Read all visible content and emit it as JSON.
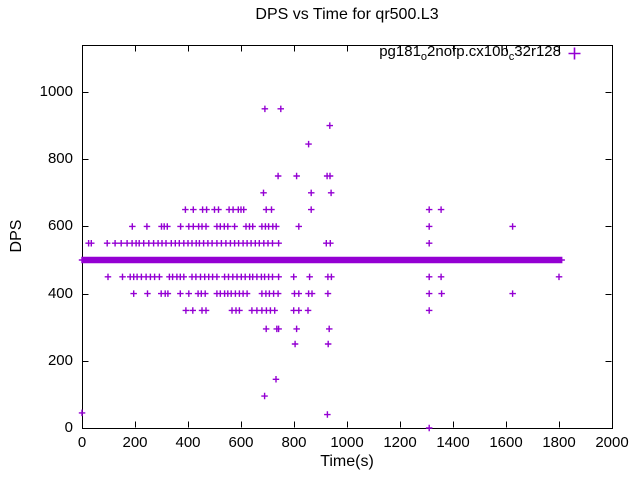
{
  "window": {
    "background": "#ffffff",
    "axis_color": "#000000"
  },
  "chart_data": {
    "type": "scatter",
    "title": "DPS vs Time for qr500.L3",
    "xlabel": "Time(s)",
    "ylabel": "DPS",
    "xlim": [
      0,
      2000
    ],
    "ylim": [
      0,
      1140
    ],
    "xticks": [
      0,
      200,
      400,
      600,
      800,
      1000,
      1200,
      1400,
      1600,
      1800,
      2000
    ],
    "yticks": [
      0,
      200,
      400,
      600,
      800,
      1000
    ],
    "grid": false,
    "legend_position": "top-right-inside",
    "marker": "plus",
    "marker_color": "#9400D3",
    "series": [
      {
        "name": "pg181_o2nofp.cx10b_c32r128",
        "label_parts": [
          {
            "text": "pg181",
            "sub": false
          },
          {
            "text": "o",
            "sub": true
          },
          {
            "text": "2nofp.cx10b",
            "sub": false
          },
          {
            "text": "c",
            "sub": true
          },
          {
            "text": "32r128",
            "sub": false
          }
        ],
        "dense_band": {
          "y": 500,
          "x_start": 0,
          "x_end": 1810,
          "x_step": 5
        },
        "points": [
          [
            690,
            950
          ],
          [
            750,
            950
          ],
          [
            935,
            900
          ],
          [
            855,
            845
          ],
          [
            740,
            750
          ],
          [
            810,
            750
          ],
          [
            925,
            750
          ],
          [
            936,
            750
          ],
          [
            685,
            700
          ],
          [
            865,
            700
          ],
          [
            940,
            700
          ],
          [
            390,
            650
          ],
          [
            420,
            650
          ],
          [
            455,
            650
          ],
          [
            470,
            650
          ],
          [
            500,
            650
          ],
          [
            515,
            650
          ],
          [
            555,
            650
          ],
          [
            570,
            650
          ],
          [
            590,
            650
          ],
          [
            600,
            650
          ],
          [
            610,
            650
          ],
          [
            695,
            650
          ],
          [
            715,
            650
          ],
          [
            865,
            650
          ],
          [
            1310,
            650
          ],
          [
            1355,
            650
          ],
          [
            190,
            600
          ],
          [
            245,
            600
          ],
          [
            300,
            600
          ],
          [
            310,
            600
          ],
          [
            322,
            600
          ],
          [
            372,
            600
          ],
          [
            403,
            600
          ],
          [
            420,
            600
          ],
          [
            440,
            600
          ],
          [
            453,
            600
          ],
          [
            468,
            600
          ],
          [
            509,
            600
          ],
          [
            522,
            600
          ],
          [
            537,
            600
          ],
          [
            550,
            600
          ],
          [
            576,
            600
          ],
          [
            619,
            600
          ],
          [
            632,
            600
          ],
          [
            644,
            600
          ],
          [
            679,
            600
          ],
          [
            692,
            600
          ],
          [
            704,
            600
          ],
          [
            720,
            600
          ],
          [
            733,
            600
          ],
          [
            818,
            600
          ],
          [
            1310,
            600
          ],
          [
            1625,
            600
          ],
          [
            25,
            550
          ],
          [
            35,
            550
          ],
          [
            95,
            550
          ],
          [
            125,
            550
          ],
          [
            148,
            550
          ],
          [
            170,
            550
          ],
          [
            189,
            550
          ],
          [
            204,
            550
          ],
          [
            216,
            550
          ],
          [
            233,
            550
          ],
          [
            252,
            550
          ],
          [
            270,
            550
          ],
          [
            287,
            550
          ],
          [
            302,
            550
          ],
          [
            317,
            550
          ],
          [
            337,
            550
          ],
          [
            352,
            550
          ],
          [
            367,
            550
          ],
          [
            384,
            550
          ],
          [
            400,
            550
          ],
          [
            415,
            550
          ],
          [
            431,
            550
          ],
          [
            443,
            550
          ],
          [
            459,
            550
          ],
          [
            475,
            550
          ],
          [
            491,
            550
          ],
          [
            509,
            550
          ],
          [
            526,
            550
          ],
          [
            543,
            550
          ],
          [
            560,
            550
          ],
          [
            576,
            550
          ],
          [
            591,
            550
          ],
          [
            608,
            550
          ],
          [
            623,
            550
          ],
          [
            638,
            550
          ],
          [
            654,
            550
          ],
          [
            669,
            550
          ],
          [
            686,
            550
          ],
          [
            702,
            550
          ],
          [
            719,
            550
          ],
          [
            742,
            550
          ],
          [
            922,
            550
          ],
          [
            937,
            550
          ],
          [
            1310,
            550
          ],
          [
            98,
            450
          ],
          [
            153,
            450
          ],
          [
            182,
            450
          ],
          [
            195,
            450
          ],
          [
            208,
            450
          ],
          [
            224,
            450
          ],
          [
            242,
            450
          ],
          [
            258,
            450
          ],
          [
            274,
            450
          ],
          [
            292,
            450
          ],
          [
            330,
            450
          ],
          [
            342,
            450
          ],
          [
            358,
            450
          ],
          [
            371,
            450
          ],
          [
            384,
            450
          ],
          [
            415,
            450
          ],
          [
            430,
            450
          ],
          [
            447,
            450
          ],
          [
            463,
            450
          ],
          [
            478,
            450
          ],
          [
            493,
            450
          ],
          [
            509,
            450
          ],
          [
            538,
            450
          ],
          [
            553,
            450
          ],
          [
            569,
            450
          ],
          [
            585,
            450
          ],
          [
            601,
            450
          ],
          [
            616,
            450
          ],
          [
            633,
            450
          ],
          [
            644,
            450
          ],
          [
            660,
            450
          ],
          [
            677,
            450
          ],
          [
            689,
            450
          ],
          [
            704,
            450
          ],
          [
            719,
            450
          ],
          [
            742,
            450
          ],
          [
            799,
            450
          ],
          [
            859,
            450
          ],
          [
            928,
            450
          ],
          [
            941,
            450
          ],
          [
            1310,
            450
          ],
          [
            1355,
            450
          ],
          [
            1800,
            450
          ],
          [
            195,
            400
          ],
          [
            247,
            400
          ],
          [
            299,
            400
          ],
          [
            314,
            400
          ],
          [
            324,
            400
          ],
          [
            371,
            400
          ],
          [
            403,
            400
          ],
          [
            438,
            400
          ],
          [
            450,
            400
          ],
          [
            465,
            400
          ],
          [
            509,
            400
          ],
          [
            522,
            400
          ],
          [
            538,
            400
          ],
          [
            550,
            400
          ],
          [
            563,
            400
          ],
          [
            579,
            400
          ],
          [
            594,
            400
          ],
          [
            608,
            400
          ],
          [
            623,
            400
          ],
          [
            679,
            400
          ],
          [
            694,
            400
          ],
          [
            707,
            400
          ],
          [
            723,
            400
          ],
          [
            740,
            400
          ],
          [
            802,
            400
          ],
          [
            818,
            400
          ],
          [
            855,
            400
          ],
          [
            868,
            400
          ],
          [
            928,
            400
          ],
          [
            1310,
            400
          ],
          [
            1357,
            400
          ],
          [
            1625,
            400
          ],
          [
            392,
            350
          ],
          [
            418,
            350
          ],
          [
            453,
            350
          ],
          [
            468,
            350
          ],
          [
            566,
            350
          ],
          [
            581,
            350
          ],
          [
            594,
            350
          ],
          [
            641,
            350
          ],
          [
            660,
            350
          ],
          [
            679,
            350
          ],
          [
            696,
            350
          ],
          [
            711,
            350
          ],
          [
            727,
            350
          ],
          [
            799,
            350
          ],
          [
            818,
            350
          ],
          [
            853,
            350
          ],
          [
            1310,
            350
          ],
          [
            695,
            295
          ],
          [
            735,
            295
          ],
          [
            742,
            295
          ],
          [
            810,
            295
          ],
          [
            933,
            295
          ],
          [
            804,
            250
          ],
          [
            929,
            250
          ],
          [
            732,
            145
          ],
          [
            689,
            95
          ],
          [
            0,
            45
          ],
          [
            926,
            40
          ],
          [
            1310,
            0
          ]
        ]
      }
    ]
  }
}
